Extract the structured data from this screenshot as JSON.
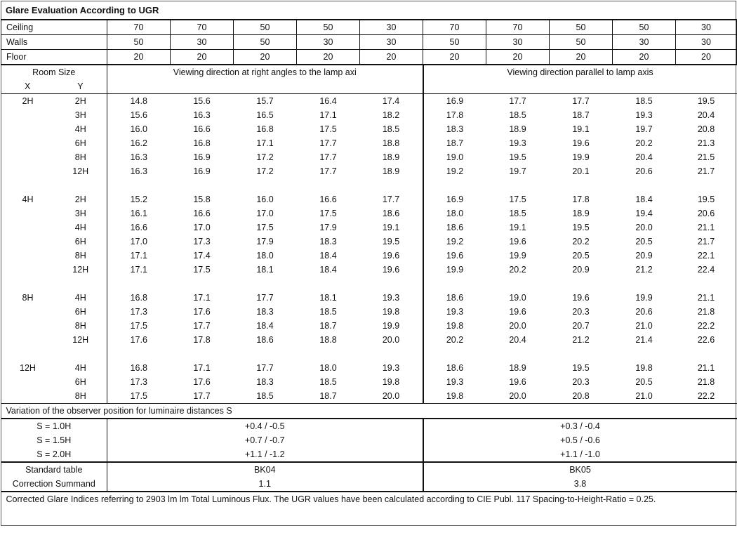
{
  "title": "Glare Evaluation According to UGR",
  "reflectances": [
    {
      "label": "Ceiling",
      "values": [
        "70",
        "70",
        "50",
        "50",
        "30",
        "70",
        "70",
        "50",
        "50",
        "30"
      ]
    },
    {
      "label": "Walls",
      "values": [
        "50",
        "30",
        "50",
        "30",
        "30",
        "50",
        "30",
        "50",
        "30",
        "30"
      ]
    },
    {
      "label": "Floor",
      "values": [
        "20",
        "20",
        "20",
        "20",
        "20",
        "20",
        "20",
        "20",
        "20",
        "20"
      ]
    }
  ],
  "header": {
    "room_size": "Room Size",
    "x": "X",
    "y": "Y",
    "dir_right": "Viewing direction at right angles to the lamp axi",
    "dir_parallel": "Viewing direction parallel to lamp axis"
  },
  "groups": [
    {
      "x": "2H",
      "rows": [
        {
          "y": "2H",
          "v": [
            "14.8",
            "15.6",
            "15.7",
            "16.4",
            "17.4",
            "16.9",
            "17.7",
            "17.7",
            "18.5",
            "19.5"
          ]
        },
        {
          "y": "3H",
          "v": [
            "15.6",
            "16.3",
            "16.5",
            "17.1",
            "18.2",
            "17.8",
            "18.5",
            "18.7",
            "19.3",
            "20.4"
          ]
        },
        {
          "y": "4H",
          "v": [
            "16.0",
            "16.6",
            "16.8",
            "17.5",
            "18.5",
            "18.3",
            "18.9",
            "19.1",
            "19.7",
            "20.8"
          ]
        },
        {
          "y": "6H",
          "v": [
            "16.2",
            "16.8",
            "17.1",
            "17.7",
            "18.8",
            "18.7",
            "19.3",
            "19.6",
            "20.2",
            "21.3"
          ]
        },
        {
          "y": "8H",
          "v": [
            "16.3",
            "16.9",
            "17.2",
            "17.7",
            "18.9",
            "19.0",
            "19.5",
            "19.9",
            "20.4",
            "21.5"
          ]
        },
        {
          "y": "12H",
          "v": [
            "16.3",
            "16.9",
            "17.2",
            "17.7",
            "18.9",
            "19.2",
            "19.7",
            "20.1",
            "20.6",
            "21.7"
          ]
        }
      ]
    },
    {
      "x": "4H",
      "rows": [
        {
          "y": "2H",
          "v": [
            "15.2",
            "15.8",
            "16.0",
            "16.6",
            "17.7",
            "16.9",
            "17.5",
            "17.8",
            "18.4",
            "19.5"
          ]
        },
        {
          "y": "3H",
          "v": [
            "16.1",
            "16.6",
            "17.0",
            "17.5",
            "18.6",
            "18.0",
            "18.5",
            "18.9",
            "19.4",
            "20.6"
          ]
        },
        {
          "y": "4H",
          "v": [
            "16.6",
            "17.0",
            "17.5",
            "17.9",
            "19.1",
            "18.6",
            "19.1",
            "19.5",
            "20.0",
            "21.1"
          ]
        },
        {
          "y": "6H",
          "v": [
            "17.0",
            "17.3",
            "17.9",
            "18.3",
            "19.5",
            "19.2",
            "19.6",
            "20.2",
            "20.5",
            "21.7"
          ]
        },
        {
          "y": "8H",
          "v": [
            "17.1",
            "17.4",
            "18.0",
            "18.4",
            "19.6",
            "19.6",
            "19.9",
            "20.5",
            "20.9",
            "22.1"
          ]
        },
        {
          "y": "12H",
          "v": [
            "17.1",
            "17.5",
            "18.1",
            "18.4",
            "19.6",
            "19.9",
            "20.2",
            "20.9",
            "21.2",
            "22.4"
          ]
        }
      ]
    },
    {
      "x": "8H",
      "rows": [
        {
          "y": "4H",
          "v": [
            "16.8",
            "17.1",
            "17.7",
            "18.1",
            "19.3",
            "18.6",
            "19.0",
            "19.6",
            "19.9",
            "21.1"
          ]
        },
        {
          "y": "6H",
          "v": [
            "17.3",
            "17.6",
            "18.3",
            "18.5",
            "19.8",
            "19.3",
            "19.6",
            "20.3",
            "20.6",
            "21.8"
          ]
        },
        {
          "y": "8H",
          "v": [
            "17.5",
            "17.7",
            "18.4",
            "18.7",
            "19.9",
            "19.8",
            "20.0",
            "20.7",
            "21.0",
            "22.2"
          ]
        },
        {
          "y": "12H",
          "v": [
            "17.6",
            "17.8",
            "18.6",
            "18.8",
            "20.0",
            "20.2",
            "20.4",
            "21.2",
            "21.4",
            "22.6"
          ]
        }
      ]
    },
    {
      "x": "12H",
      "rows": [
        {
          "y": "4H",
          "v": [
            "16.8",
            "17.1",
            "17.7",
            "18.0",
            "19.3",
            "18.6",
            "18.9",
            "19.5",
            "19.8",
            "21.1"
          ]
        },
        {
          "y": "6H",
          "v": [
            "17.3",
            "17.6",
            "18.3",
            "18.5",
            "19.8",
            "19.3",
            "19.6",
            "20.3",
            "20.5",
            "21.8"
          ]
        },
        {
          "y": "8H",
          "v": [
            "17.5",
            "17.7",
            "18.5",
            "18.7",
            "20.0",
            "19.8",
            "20.0",
            "20.8",
            "21.0",
            "22.2"
          ]
        }
      ]
    }
  ],
  "variation": {
    "title": "Variation of the observer position for luminaire distances S",
    "rows": [
      {
        "label": "S = 1.0H",
        "right": "+0.4 / -0.5",
        "parallel": "+0.3 / -0.4"
      },
      {
        "label": "S = 1.5H",
        "right": "+0.7 / -0.7",
        "parallel": "+0.5 / -0.6"
      },
      {
        "label": "S = 2.0H",
        "right": "+1.1 / -1.2",
        "parallel": "+1.1 / -1.0"
      }
    ]
  },
  "standard": [
    {
      "label": "Standard table",
      "right": "BK04",
      "parallel": "BK05"
    },
    {
      "label": "Correction Summand",
      "right": "1.1",
      "parallel": "3.8"
    }
  ],
  "footer": "Corrected Glare Indices referring to 2903 lm lm Total Luminous Flux. The UGR values have been calculated according to CIE Publ. 117    Spacing-to-Height-Ratio = 0.25."
}
